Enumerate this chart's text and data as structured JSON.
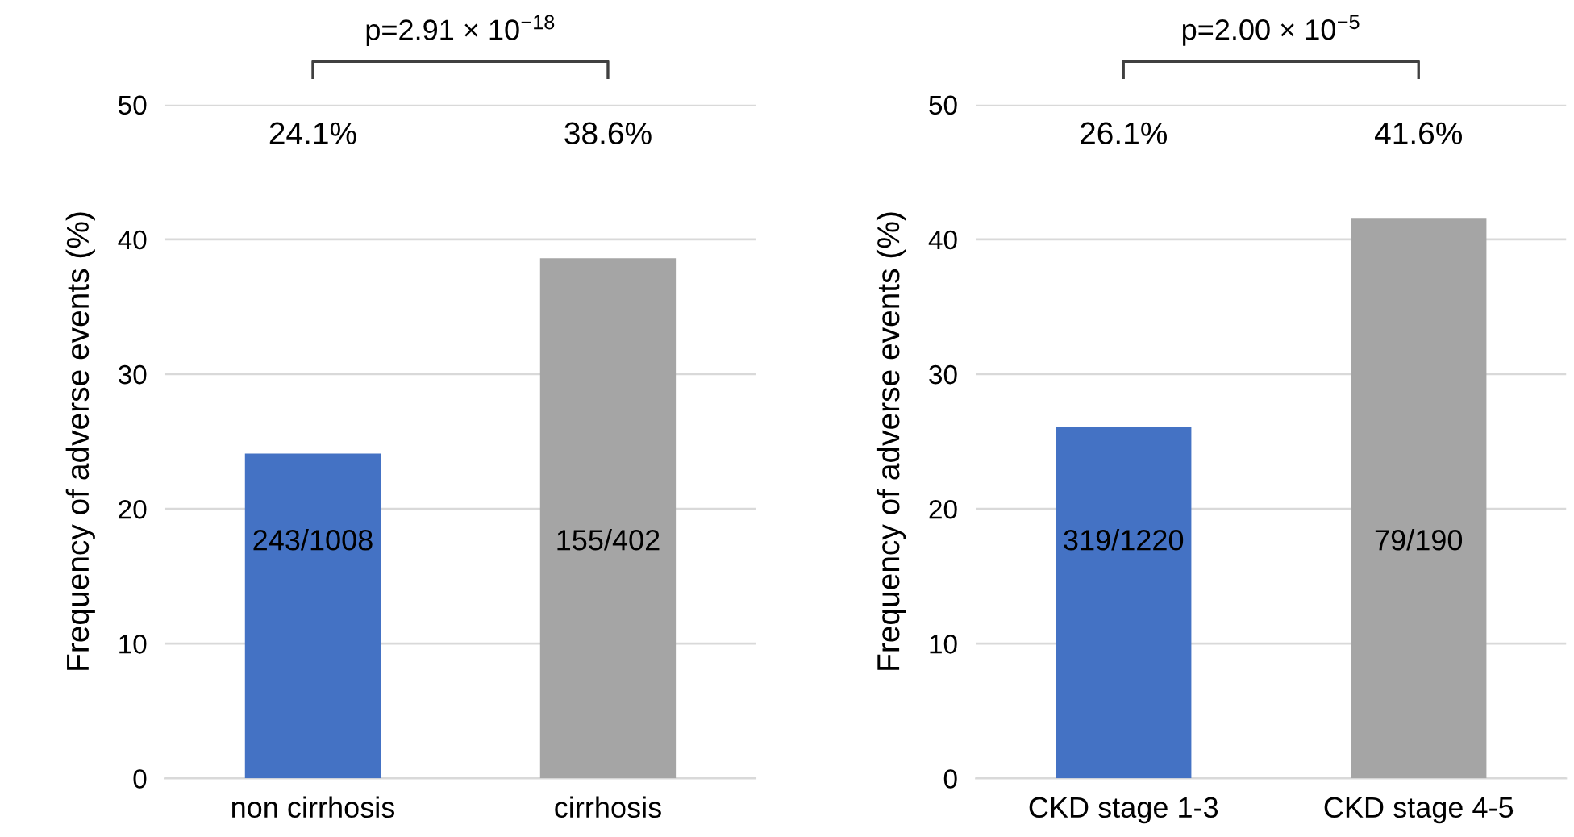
{
  "chart_data": [
    {
      "type": "bar",
      "ylabel": "Frequency of adverse events (%)",
      "categories": [
        "non cirrhosis",
        "cirrhosis"
      ],
      "values": [
        24.1,
        38.6
      ],
      "colors": [
        "#4472c4",
        "#a5a5a5"
      ],
      "ylim": [
        0,
        50
      ],
      "yticks": [
        0,
        10,
        20,
        30,
        40,
        50
      ],
      "grid": "y",
      "annotations": [
        "p=2.91 × 10$^{−18}$",
        "24.1%",
        "38.6%",
        "243/1008",
        "155/402"
      ]
    },
    {
      "type": "bar",
      "ylabel": "Frequency of adverse events (%)",
      "categories": [
        "CKD stage 1-3",
        "CKD stage 4-5"
      ],
      "values": [
        26.1,
        41.6
      ],
      "colors": [
        "#4472c4",
        "#a5a5a5"
      ],
      "ylim": [
        0,
        50
      ],
      "yticks": [
        0,
        10,
        20,
        30,
        40,
        50
      ],
      "grid": "y",
      "annotations": [
        "p=2.00 × 10$^{−5}$",
        "26.1%",
        "41.6%",
        "319/1220",
        "79/190"
      ]
    }
  ]
}
